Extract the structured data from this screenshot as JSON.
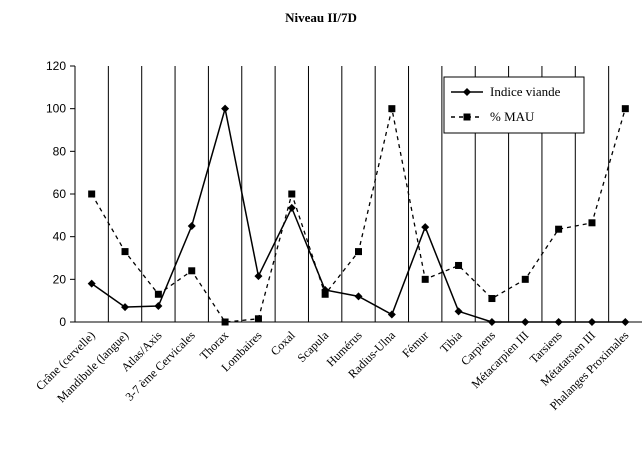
{
  "title": "Niveau II/7D",
  "chart_data": {
    "type": "line",
    "title": "Niveau II/7D",
    "xlabel": "",
    "ylabel": "",
    "ylim": [
      0,
      120
    ],
    "yticks": [
      0,
      20,
      40,
      60,
      80,
      100,
      120
    ],
    "grid": "vertical lines between categories",
    "legend_position": "top-right",
    "categories": [
      "Crâne (cervelle)",
      "Mandibule (langue)",
      "Atlas/Axis",
      "3-7 ème Cervicales",
      "Thorax",
      "Lombaires",
      "Coxal",
      "Scapula",
      "Humérus",
      "Radius-Ulna",
      "Fémur",
      "Tibia",
      "Carpiens",
      "Métacarpien III",
      "Tarsiens",
      "Métatarsien III",
      "Phalanges Proximales"
    ],
    "series": [
      {
        "name": "Indice viande",
        "style": "solid",
        "marker": "diamond",
        "color": "#000000",
        "values": [
          18,
          7,
          7.5,
          45,
          100,
          21.5,
          53.5,
          15,
          12,
          3.5,
          44.5,
          5,
          0,
          0,
          0,
          0,
          0
        ]
      },
      {
        "name": "% MAU",
        "style": "dashed",
        "marker": "square",
        "color": "#000000",
        "values": [
          60,
          33,
          13,
          24,
          0,
          1.5,
          60,
          13,
          33,
          100,
          20,
          26.5,
          11,
          20,
          43.5,
          46.5,
          100
        ]
      }
    ]
  }
}
